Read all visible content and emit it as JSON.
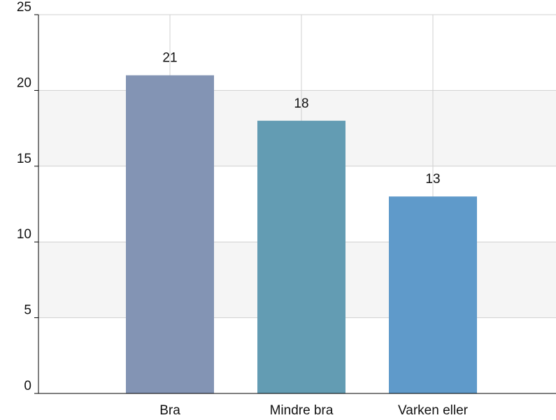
{
  "chart_data": {
    "type": "bar",
    "categories": [
      "Bra",
      "Mindre bra",
      "Varken eller"
    ],
    "values": [
      21,
      18,
      13
    ],
    "colors": [
      "#8394b4",
      "#639cb3",
      "#5f9aca"
    ],
    "ylim": [
      0,
      25
    ],
    "yticks": [
      0,
      5,
      10,
      15,
      20,
      25
    ],
    "grid": true
  }
}
